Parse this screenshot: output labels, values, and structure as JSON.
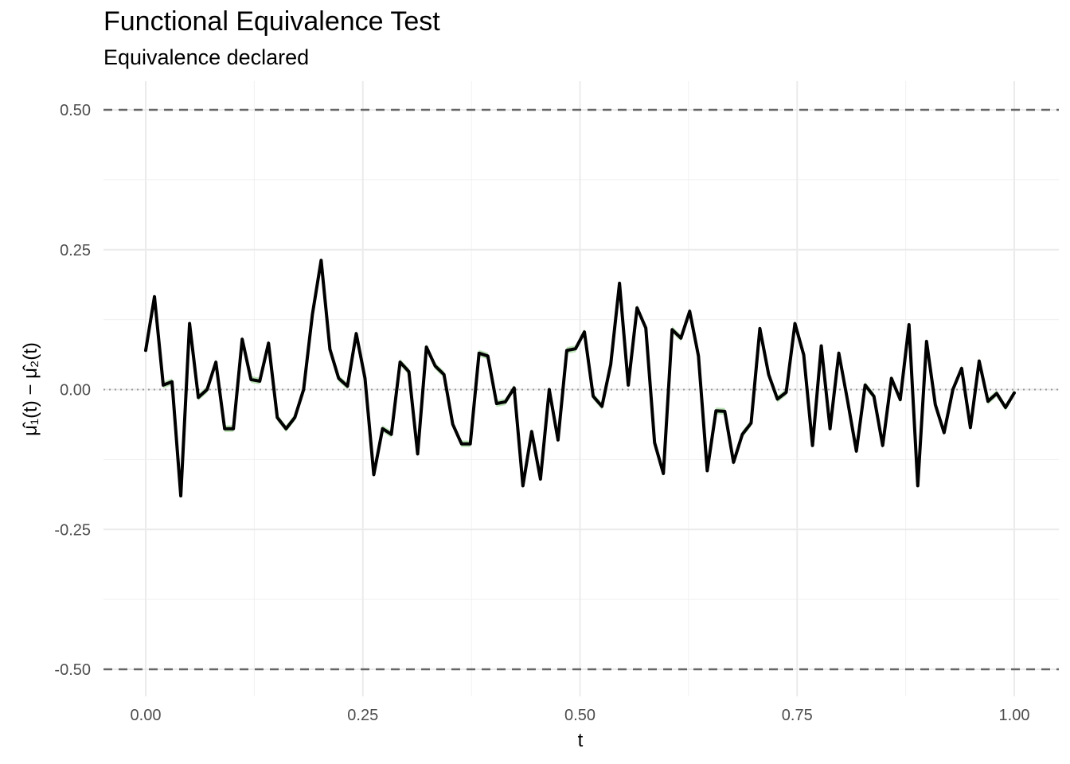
{
  "chart_data": {
    "type": "line",
    "title": "Functional Equivalence Test",
    "subtitle": "Equivalence declared",
    "xlabel": "t",
    "ylabel": "μ̂₁(t) − μ̂₂(t)",
    "xlim": [
      0,
      1
    ],
    "ylim": [
      -0.5,
      0.5
    ],
    "x_ticks": [
      0,
      0.25,
      0.5,
      0.75,
      1
    ],
    "x_tick_labels": [
      "0.00",
      "0.25",
      "0.50",
      "0.75",
      "1.00"
    ],
    "y_ticks": [
      0.5,
      0.25,
      0,
      -0.25,
      -0.5
    ],
    "y_tick_labels": [
      "0.50",
      "0.25",
      "0.00",
      "-0.25",
      "-0.50"
    ],
    "grid": true,
    "equivalence_bounds": [
      -0.5,
      0.5
    ],
    "zero_reference": 0,
    "series": [
      {
        "color": "#000000",
        "band_color": "#a8dba0",
        "band_halfwidth": 0.006,
        "x": [
          0,
          0.0101,
          0.0202,
          0.0303,
          0.0404,
          0.0505,
          0.0606,
          0.0707,
          0.0808,
          0.0909,
          0.101,
          0.1111,
          0.1212,
          0.1313,
          0.1414,
          0.1515,
          0.1616,
          0.1717,
          0.1818,
          0.1919,
          0.202,
          0.2121,
          0.2222,
          0.2323,
          0.2424,
          0.2525,
          0.2626,
          0.2727,
          0.2828,
          0.2929,
          0.303,
          0.3131,
          0.3232,
          0.3333,
          0.3434,
          0.3535,
          0.3636,
          0.3737,
          0.3838,
          0.3939,
          0.404,
          0.4141,
          0.4242,
          0.4343,
          0.4444,
          0.4545,
          0.4646,
          0.4747,
          0.4848,
          0.4949,
          0.5051,
          0.5152,
          0.5253,
          0.5354,
          0.5455,
          0.5556,
          0.5657,
          0.5758,
          0.5859,
          0.596,
          0.6061,
          0.6162,
          0.6263,
          0.6364,
          0.6465,
          0.6566,
          0.6667,
          0.6768,
          0.6869,
          0.697,
          0.7071,
          0.7172,
          0.7273,
          0.7374,
          0.7475,
          0.7576,
          0.7677,
          0.7778,
          0.7879,
          0.798,
          0.8081,
          0.8182,
          0.8283,
          0.8384,
          0.8485,
          0.8586,
          0.8687,
          0.8788,
          0.8889,
          0.899,
          0.9091,
          0.9192,
          0.9293,
          0.9394,
          0.9495,
          0.9596,
          0.9697,
          0.9798,
          0.9899,
          1
        ],
        "y": [
          0.07,
          0.166,
          0.008,
          0.014,
          -0.19,
          0.118,
          -0.014,
          0.0,
          0.049,
          -0.07,
          -0.07,
          0.09,
          0.018,
          0.015,
          0.083,
          -0.05,
          -0.07,
          -0.05,
          0.0,
          0.134,
          0.231,
          0.072,
          0.02,
          0.006,
          0.1,
          0.02,
          -0.152,
          -0.07,
          -0.08,
          0.049,
          0.032,
          -0.115,
          0.076,
          0.042,
          0.027,
          -0.062,
          -0.097,
          -0.097,
          0.065,
          0.06,
          -0.025,
          -0.022,
          0.003,
          -0.172,
          -0.075,
          -0.16,
          0.0,
          -0.09,
          0.07,
          0.073,
          0.103,
          -0.012,
          -0.03,
          0.045,
          0.19,
          0.008,
          0.146,
          0.11,
          -0.095,
          -0.15,
          0.107,
          0.092,
          0.14,
          0.06,
          -0.145,
          -0.038,
          -0.039,
          -0.13,
          -0.08,
          -0.06,
          0.109,
          0.027,
          -0.017,
          -0.005,
          0.118,
          0.062,
          -0.1,
          0.078,
          -0.07,
          0.065,
          -0.02,
          -0.11,
          0.008,
          -0.012,
          -0.1,
          0.02,
          -0.018,
          0.116,
          -0.172,
          0.086,
          -0.027,
          -0.077,
          0.0,
          0.038,
          -0.068,
          0.051,
          -0.021,
          -0.007,
          -0.032,
          -0.006
        ]
      }
    ]
  }
}
